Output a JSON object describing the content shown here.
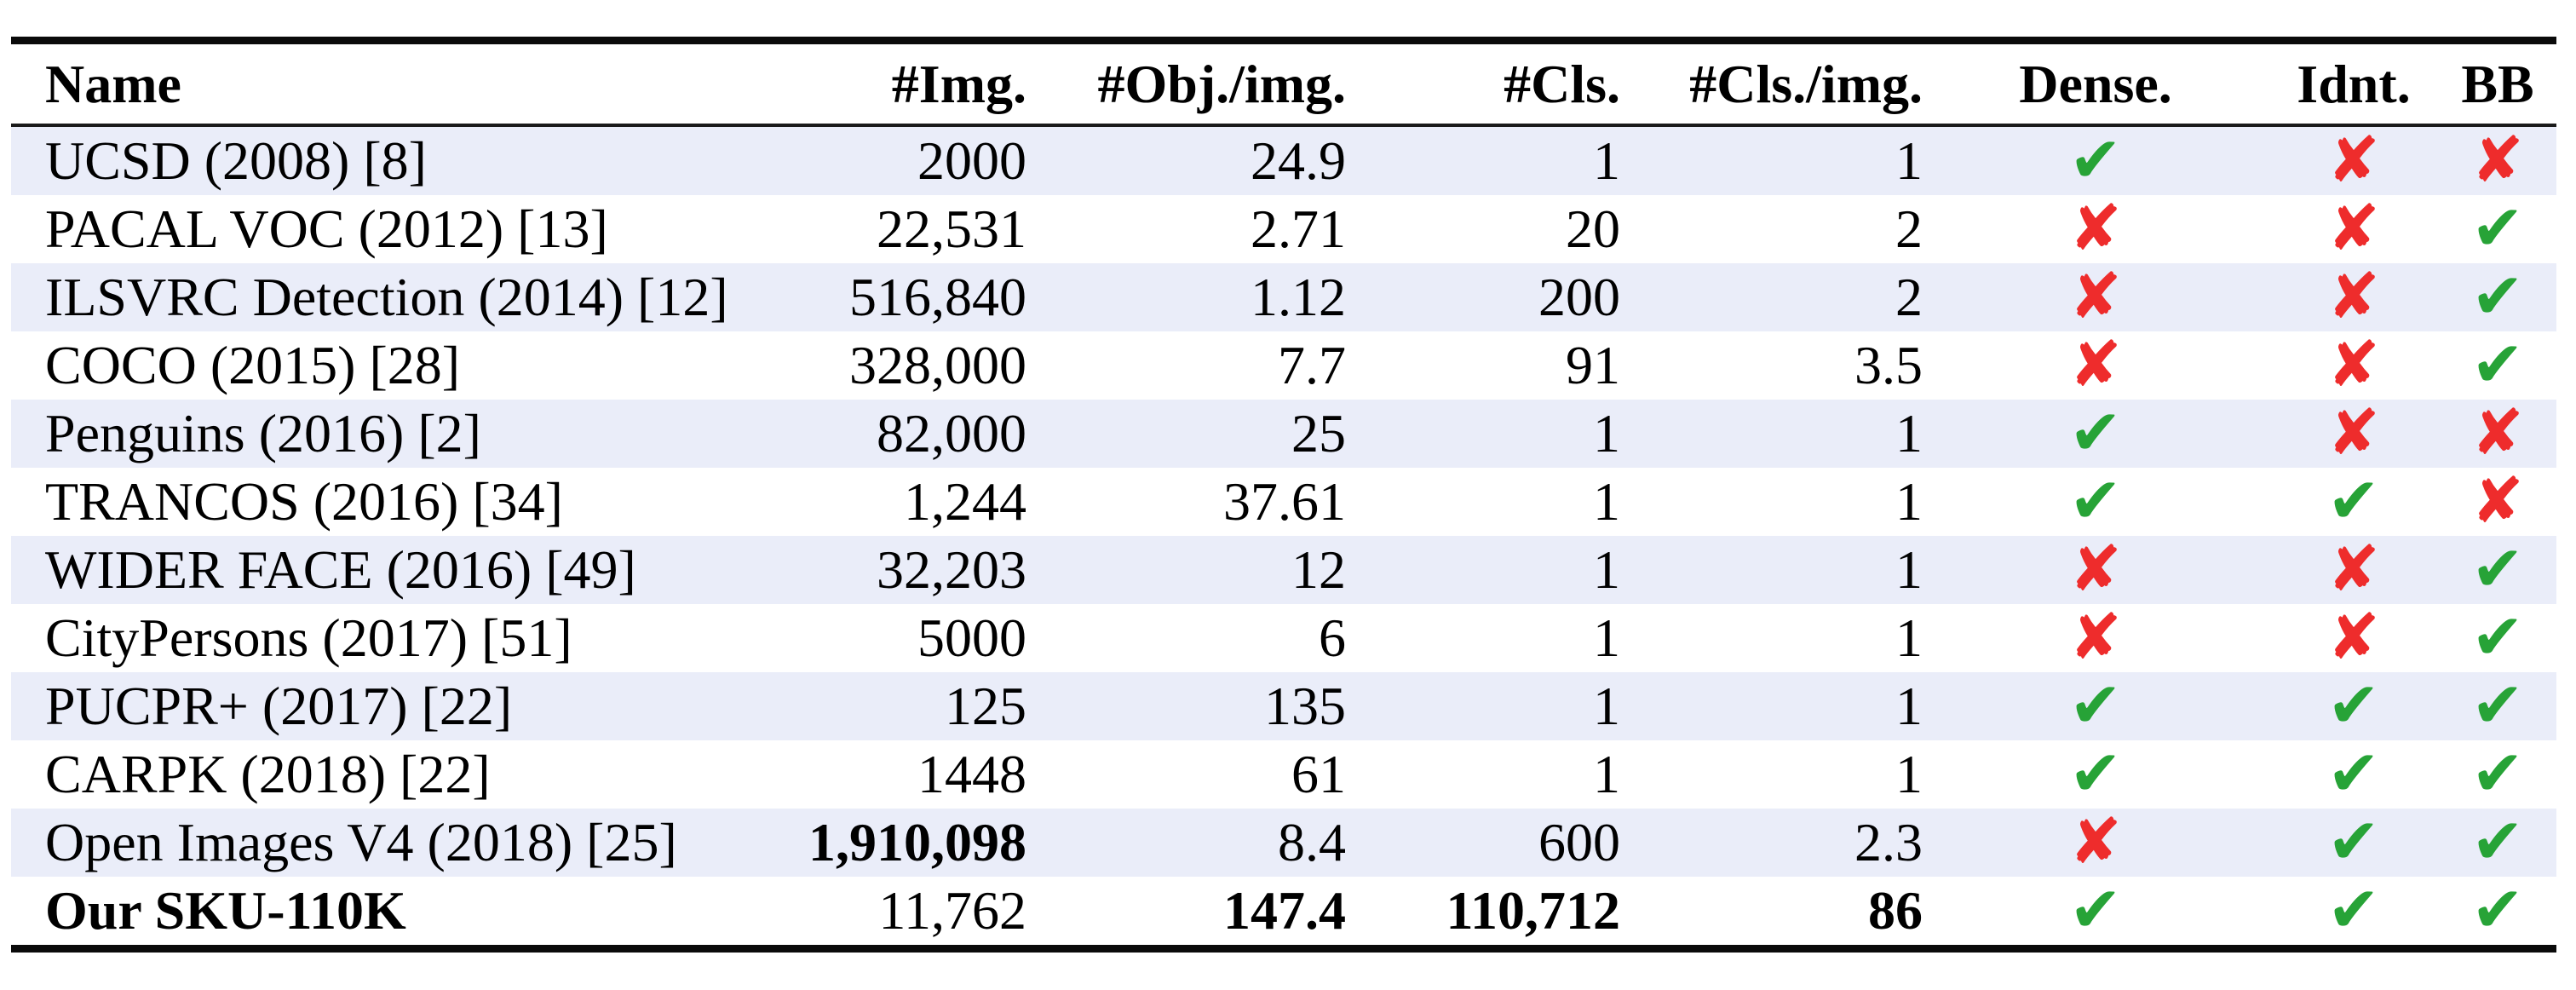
{
  "table": {
    "columns": [
      {
        "label": "Name"
      },
      {
        "label": "#Img."
      },
      {
        "label": "#Obj./img."
      },
      {
        "label": "#Cls."
      },
      {
        "label": "#Cls./img."
      },
      {
        "label": "Dense."
      },
      {
        "label": "Idnt."
      },
      {
        "label": "BB"
      }
    ],
    "rows": [
      {
        "name": "UCSD (2008) [8]",
        "img": "2000",
        "obj": "24.9",
        "cls": "1",
        "clsimg": "1",
        "dense": true,
        "idnt": false,
        "bb": false,
        "bold": []
      },
      {
        "name": "PACAL VOC (2012) [13]",
        "img": "22,531",
        "obj": "2.71",
        "cls": "20",
        "clsimg": "2",
        "dense": false,
        "idnt": false,
        "bb": true,
        "bold": []
      },
      {
        "name": "ILSVRC Detection (2014) [12]",
        "img": "516,840",
        "obj": "1.12",
        "cls": "200",
        "clsimg": "2",
        "dense": false,
        "idnt": false,
        "bb": true,
        "bold": []
      },
      {
        "name": "COCO (2015) [28]",
        "img": "328,000",
        "obj": "7.7",
        "cls": "91",
        "clsimg": "3.5",
        "dense": false,
        "idnt": false,
        "bb": true,
        "bold": []
      },
      {
        "name": "Penguins (2016) [2]",
        "img": "82,000",
        "obj": "25",
        "cls": "1",
        "clsimg": "1",
        "dense": true,
        "idnt": false,
        "bb": false,
        "bold": []
      },
      {
        "name": "TRANCOS (2016) [34]",
        "img": "1,244",
        "obj": "37.61",
        "cls": "1",
        "clsimg": "1",
        "dense": true,
        "idnt": true,
        "bb": false,
        "bold": []
      },
      {
        "name": "WIDER FACE (2016) [49]",
        "img": "32,203",
        "obj": "12",
        "cls": "1",
        "clsimg": "1",
        "dense": false,
        "idnt": false,
        "bb": true,
        "bold": []
      },
      {
        "name": "CityPersons (2017) [51]",
        "img": "5000",
        "obj": "6",
        "cls": "1",
        "clsimg": "1",
        "dense": false,
        "idnt": false,
        "bb": true,
        "bold": []
      },
      {
        "name": "PUCPR+ (2017) [22]",
        "img": "125",
        "obj": "135",
        "cls": "1",
        "clsimg": "1",
        "dense": true,
        "idnt": true,
        "bb": true,
        "bold": []
      },
      {
        "name": "CARPK (2018) [22]",
        "img": "1448",
        "obj": "61",
        "cls": "1",
        "clsimg": "1",
        "dense": true,
        "idnt": true,
        "bb": true,
        "bold": []
      },
      {
        "name": "Open Images V4 (2018) [25]",
        "img": "1,910,098",
        "obj": "8.4",
        "cls": "600",
        "clsimg": "2.3",
        "dense": false,
        "idnt": true,
        "bb": true,
        "bold": [
          "img"
        ]
      },
      {
        "name": "Our SKU-110K",
        "img": "11,762",
        "obj": "147.4",
        "cls": "110,712",
        "clsimg": "86",
        "dense": true,
        "idnt": true,
        "bb": true,
        "bold": [
          "name",
          "obj",
          "cls",
          "clsimg"
        ]
      }
    ]
  },
  "icons": {
    "check": "✔",
    "cross": "✘"
  },
  "colors": {
    "check_green": "#27A337",
    "cross_red": "#EE2C2C",
    "row_shade": "#EAEDF9"
  }
}
